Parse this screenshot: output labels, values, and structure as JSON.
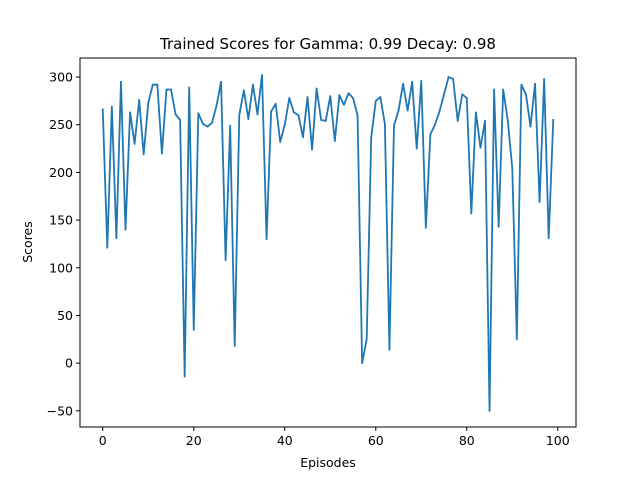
{
  "chart_data": {
    "type": "line",
    "title": "Trained Scores for Gamma: 0.99 Decay: 0.98",
    "xlabel": "Episodes",
    "ylabel": "Scores",
    "xlim": [
      -5,
      104
    ],
    "ylim": [
      -67,
      320
    ],
    "xticks": [
      0,
      20,
      40,
      60,
      80,
      100
    ],
    "yticks": [
      -50,
      0,
      50,
      100,
      150,
      200,
      250,
      300
    ],
    "grid": false,
    "legend": "none",
    "line_color": "#1f77b4",
    "series": [
      {
        "x": [
          0,
          1,
          2,
          3,
          4,
          5,
          6,
          7,
          8,
          9,
          10,
          11,
          12,
          13,
          14,
          15,
          16,
          17,
          18,
          19,
          20,
          21,
          22,
          23,
          24,
          25,
          26,
          27,
          28,
          29,
          30,
          31,
          32,
          33,
          34,
          35,
          36,
          37,
          38,
          39,
          40,
          41,
          42,
          43,
          44,
          45,
          46,
          47,
          48,
          49,
          50,
          51,
          52,
          53,
          54,
          55,
          56,
          57,
          58,
          59,
          60,
          61,
          62,
          63,
          64,
          65,
          66,
          67,
          68,
          69,
          70,
          71,
          72,
          73,
          74,
          75,
          76,
          77,
          78,
          79,
          80,
          81,
          82,
          83,
          84,
          85,
          86,
          87,
          88,
          89,
          90,
          91,
          92,
          93,
          94,
          95,
          96,
          97,
          98,
          99
        ],
        "values": [
          266,
          121,
          269,
          131,
          295,
          140,
          263,
          230,
          276,
          219,
          273,
          292,
          292,
          220,
          287,
          287,
          261,
          255,
          -14,
          289,
          35,
          262,
          251,
          248,
          252,
          270,
          295,
          108,
          249,
          18,
          260,
          286,
          256,
          292,
          261,
          302,
          130,
          264,
          272,
          232,
          250,
          278,
          263,
          260,
          237,
          279,
          224,
          288,
          255,
          254,
          280,
          233,
          281,
          271,
          283,
          278,
          260,
          0,
          25,
          237,
          275,
          279,
          251,
          14,
          249,
          265,
          293,
          265,
          295,
          225,
          296,
          142,
          240,
          250,
          264,
          282,
          300,
          298,
          254,
          282,
          278,
          157,
          263,
          226,
          254,
          -50,
          287,
          143,
          287,
          255,
          204,
          25,
          292,
          282,
          248,
          293,
          169,
          298,
          131,
          255
        ]
      }
    ]
  }
}
